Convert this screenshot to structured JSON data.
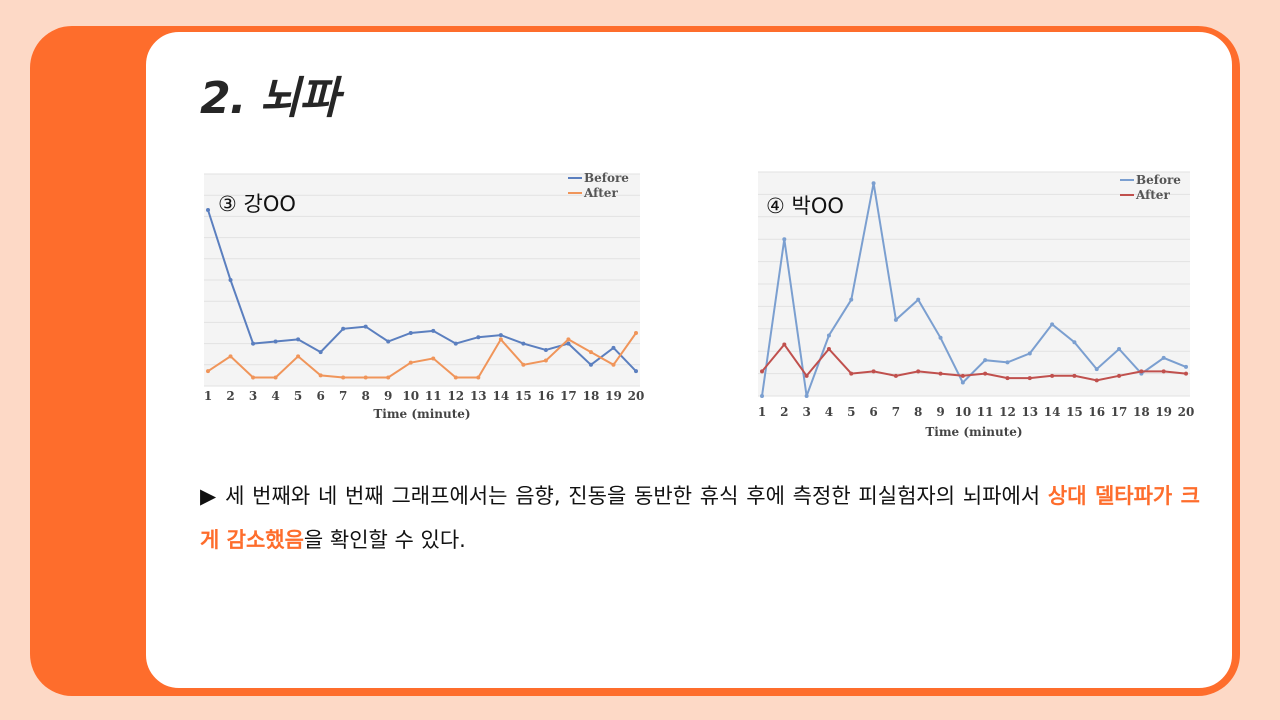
{
  "slide": {
    "title": "2. 뇌파"
  },
  "charts": [
    {
      "label": "③ 강OO"
    },
    {
      "label": "④ 박OO"
    }
  ],
  "chart_data": [
    {
      "type": "line",
      "title": "③ 강OO",
      "xlabel": "Time (minute)",
      "ylabel": "",
      "x": [
        1,
        2,
        3,
        4,
        5,
        6,
        7,
        8,
        9,
        10,
        11,
        12,
        13,
        14,
        15,
        16,
        17,
        18,
        19,
        20
      ],
      "ylim": [
        0,
        1
      ],
      "grid": true,
      "legend_position": "top-right",
      "series": [
        {
          "name": "Before",
          "color": "#5b7fbf",
          "values": [
            0.83,
            0.5,
            0.2,
            0.21,
            0.22,
            0.16,
            0.27,
            0.28,
            0.21,
            0.25,
            0.26,
            0.2,
            0.23,
            0.24,
            0.2,
            0.17,
            0.2,
            0.1,
            0.18,
            0.07
          ]
        },
        {
          "name": "After",
          "color": "#f0955a",
          "values": [
            0.07,
            0.14,
            0.04,
            0.04,
            0.14,
            0.05,
            0.04,
            0.04,
            0.04,
            0.11,
            0.13,
            0.04,
            0.04,
            0.22,
            0.1,
            0.12,
            0.22,
            0.16,
            0.1,
            0.25
          ]
        }
      ]
    },
    {
      "type": "line",
      "title": "④ 박OO",
      "xlabel": "Time (minute)",
      "ylabel": "",
      "x": [
        1,
        2,
        3,
        4,
        5,
        6,
        7,
        8,
        9,
        10,
        11,
        12,
        13,
        14,
        15,
        16,
        17,
        18,
        19,
        20
      ],
      "ylim": [
        0,
        1
      ],
      "grid": true,
      "legend_position": "top-right",
      "series": [
        {
          "name": "Before",
          "color": "#7b9fd0",
          "values": [
            0.0,
            0.7,
            0.0,
            0.27,
            0.43,
            0.95,
            0.34,
            0.43,
            0.26,
            0.06,
            0.16,
            0.15,
            0.19,
            0.32,
            0.24,
            0.12,
            0.21,
            0.1,
            0.17,
            0.13
          ]
        },
        {
          "name": "After",
          "color": "#c0504d",
          "values": [
            0.11,
            0.23,
            0.09,
            0.21,
            0.1,
            0.11,
            0.09,
            0.11,
            0.1,
            0.09,
            0.1,
            0.08,
            0.08,
            0.09,
            0.09,
            0.07,
            0.09,
            0.11,
            0.11,
            0.1
          ]
        }
      ]
    }
  ],
  "description": {
    "bullet": "▶",
    "part1": " 세 번째와 네 번째 그래프에서는 음향, 진동을 동반한 휴식 후에 측정한 피실험자의 뇌파에서 ",
    "highlight": "상대 델타파가 크게 감소했음",
    "part2": "을 확인할 수 있다."
  },
  "colors": {
    "accent": "#fe6d2c",
    "background": "#fdd9c6",
    "card": "#ffffff"
  }
}
